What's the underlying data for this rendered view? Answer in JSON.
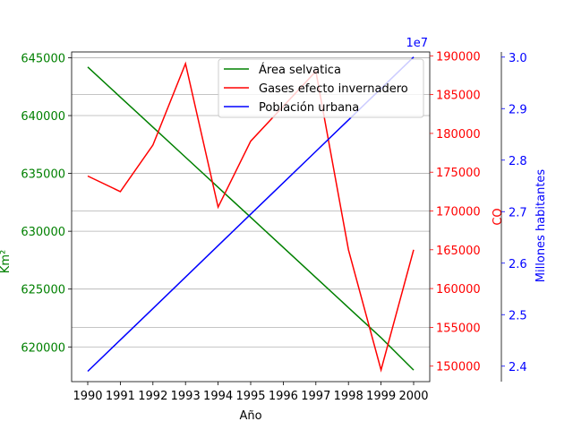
{
  "chart_data": {
    "type": "line",
    "xlabel": "Año",
    "x_categories": [
      "1990",
      "1991",
      "1992",
      "1993",
      "1994",
      "1995",
      "1996",
      "1997",
      "1998",
      "1999",
      "2000"
    ],
    "axes": [
      {
        "id": "left",
        "ylabel": "Km²",
        "color": "#008000",
        "ylim": [
          617000,
          645500
        ],
        "ticks": [
          620000,
          625000,
          630000,
          635000,
          640000,
          645000
        ],
        "tick_labels": [
          "620000",
          "625000",
          "630000",
          "635000",
          "640000",
          "645000"
        ]
      },
      {
        "id": "right1",
        "ylabel": "CO",
        "color": "#ff0000",
        "ylim": [
          148000,
          190500
        ],
        "ticks": [
          150000,
          155000,
          160000,
          165000,
          170000,
          175000,
          180000,
          185000,
          190000
        ],
        "tick_labels": [
          "150000",
          "155000",
          "160000",
          "165000",
          "170000",
          "175000",
          "180000",
          "185000",
          "190000"
        ]
      },
      {
        "id": "right2",
        "ylabel": "Millones habitantes",
        "color": "#0000ff",
        "ylim": [
          2.37,
          3.01
        ],
        "offset_label": "1e7",
        "ticks": [
          2.4,
          2.5,
          2.6,
          2.7,
          2.8,
          2.9,
          3.0
        ],
        "tick_labels": [
          "2.4",
          "2.5",
          "2.6",
          "2.7",
          "2.8",
          "2.9",
          "3.0"
        ]
      }
    ],
    "series": [
      {
        "name": "Área selvatica",
        "axis": "left",
        "color": "#008000",
        "values": [
          644200,
          641600,
          639000,
          636400,
          633800,
          631200,
          628600,
          626000,
          623400,
          620800,
          618000
        ]
      },
      {
        "name": "Gases efecto invernadero",
        "axis": "right1",
        "color": "#ff0000",
        "values": [
          174500,
          172500,
          178500,
          189000,
          170500,
          179000,
          183500,
          188000,
          165000,
          149500,
          165000
        ]
      },
      {
        "name": "Población urbana",
        "axis": "right2",
        "color": "#0000ff",
        "values": [
          2.39,
          2.451,
          2.512,
          2.573,
          2.634,
          2.695,
          2.756,
          2.817,
          2.878,
          2.939,
          3.0
        ]
      }
    ],
    "grid": "horizontal lines at left-axis ticks",
    "legend_placement": "top-right"
  }
}
